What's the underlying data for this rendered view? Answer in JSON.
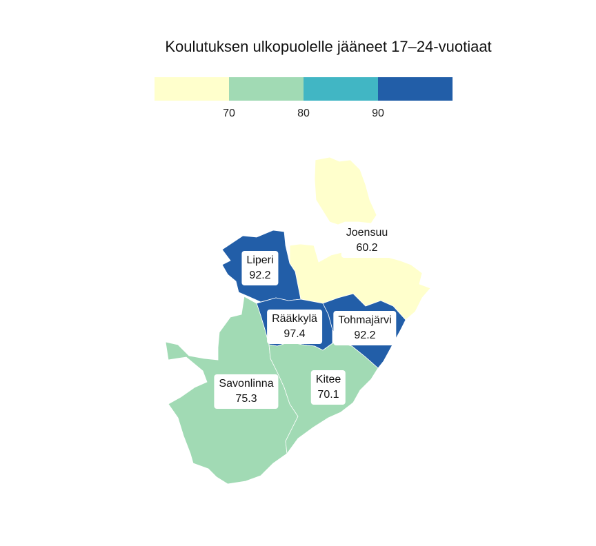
{
  "title": "Koulutuksen ulkopuolelle jääneet 17–24-vuotiaat",
  "legend": {
    "colors": [
      "#ffffcc",
      "#a1dab4",
      "#41b6c4",
      "#225ea8"
    ],
    "ticks": [
      "70",
      "80",
      "90"
    ]
  },
  "regions": [
    {
      "name": "Joensuu",
      "value": "60.2",
      "color": "#ffffcc"
    },
    {
      "name": "Liperi",
      "value": "92.2",
      "color": "#225ea8"
    },
    {
      "name": "Rääkkylä",
      "value": "97.4",
      "color": "#225ea8"
    },
    {
      "name": "Tohmajärvi",
      "value": "92.2",
      "color": "#225ea8"
    },
    {
      "name": "Savonlinna",
      "value": "75.3",
      "color": "#a1dab4"
    },
    {
      "name": "Kitee",
      "value": "70.1",
      "color": "#a1dab4"
    }
  ]
}
